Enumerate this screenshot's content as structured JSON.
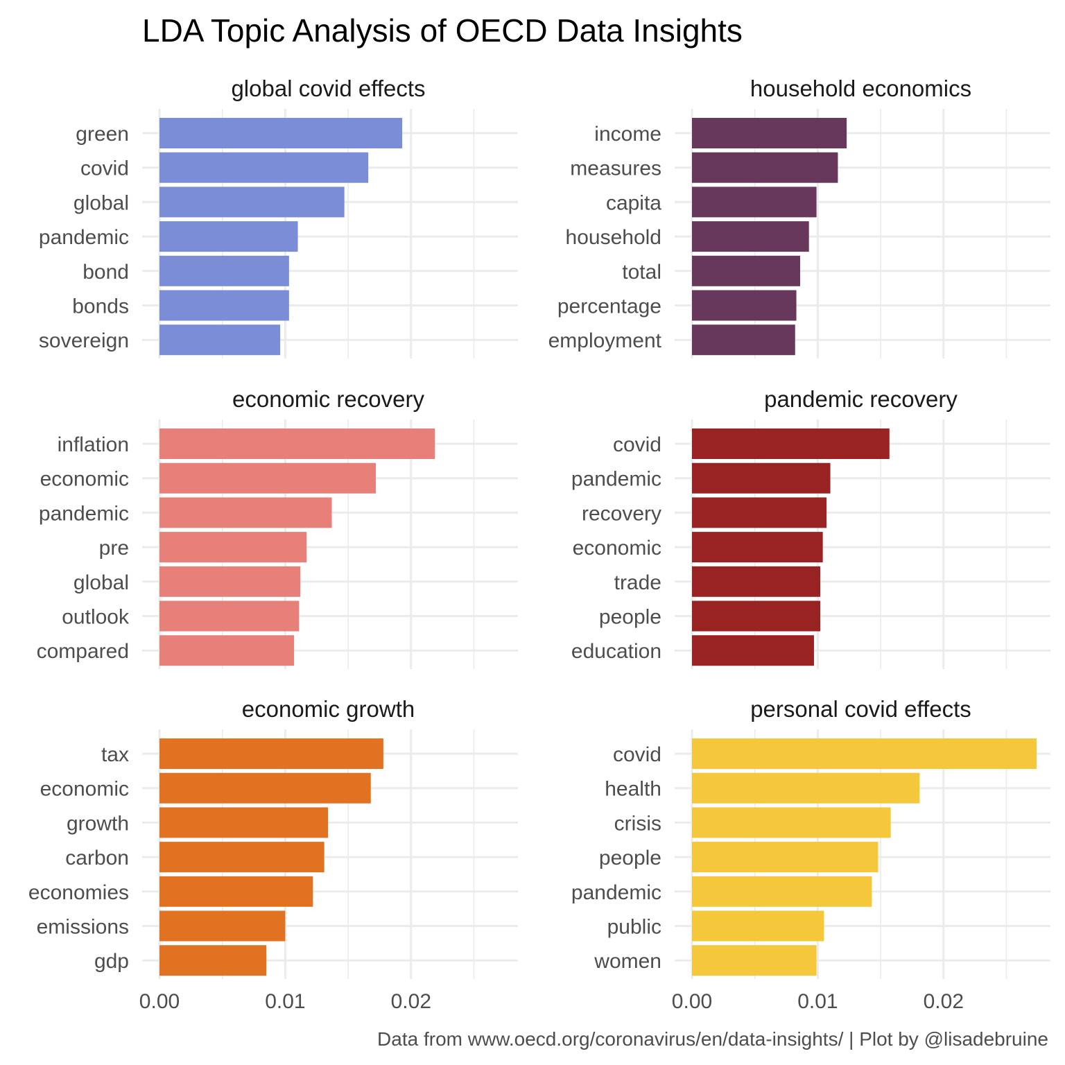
{
  "chart_data": {
    "type": "bar",
    "orientation": "horizontal",
    "title": "LDA Topic Analysis of OECD Data Insights",
    "caption": "Data from www.oecd.org/coronavirus/en/data-insights/ | Plot by @lisadebruine",
    "xlim": [
      0,
      0.0285
    ],
    "x_ticks": [
      0,
      0.01,
      0.02
    ],
    "x_tick_labels": [
      "0.00",
      "0.01",
      "0.02"
    ],
    "grid": true,
    "facets": [
      {
        "name": "global covid effects",
        "color": "#7A8DD6",
        "terms": [
          "green",
          "covid",
          "global",
          "pandemic",
          "bond",
          "bonds",
          "sovereign"
        ],
        "values": [
          0.0193,
          0.0166,
          0.0147,
          0.011,
          0.0103,
          0.0103,
          0.0096
        ]
      },
      {
        "name": "household economics",
        "color": "#67375C",
        "terms": [
          "income",
          "measures",
          "capita",
          "household",
          "total",
          "percentage",
          "employment"
        ],
        "values": [
          0.0123,
          0.0116,
          0.0099,
          0.0093,
          0.0086,
          0.0083,
          0.0082
        ]
      },
      {
        "name": "economic recovery",
        "color": "#E8807A",
        "terms": [
          "inflation",
          "economic",
          "pandemic",
          "pre",
          "global",
          "outlook",
          "compared"
        ],
        "values": [
          0.0219,
          0.0172,
          0.0137,
          0.0117,
          0.0112,
          0.0111,
          0.0107
        ]
      },
      {
        "name": "pandemic recovery",
        "color": "#992222",
        "terms": [
          "covid",
          "pandemic",
          "recovery",
          "economic",
          "trade",
          "people",
          "education"
        ],
        "values": [
          0.0157,
          0.011,
          0.0107,
          0.0104,
          0.0102,
          0.0102,
          0.0097
        ]
      },
      {
        "name": "economic growth",
        "color": "#E07222",
        "terms": [
          "tax",
          "economic",
          "growth",
          "carbon",
          "economies",
          "emissions",
          "gdp"
        ],
        "values": [
          0.0178,
          0.0168,
          0.0134,
          0.0131,
          0.0122,
          0.01,
          0.0085
        ]
      },
      {
        "name": "personal covid effects",
        "color": "#F5C73A",
        "terms": [
          "covid",
          "health",
          "crisis",
          "people",
          "pandemic",
          "public",
          "women"
        ],
        "values": [
          0.0274,
          0.0181,
          0.0158,
          0.0148,
          0.0143,
          0.0105,
          0.0099
        ]
      }
    ]
  }
}
